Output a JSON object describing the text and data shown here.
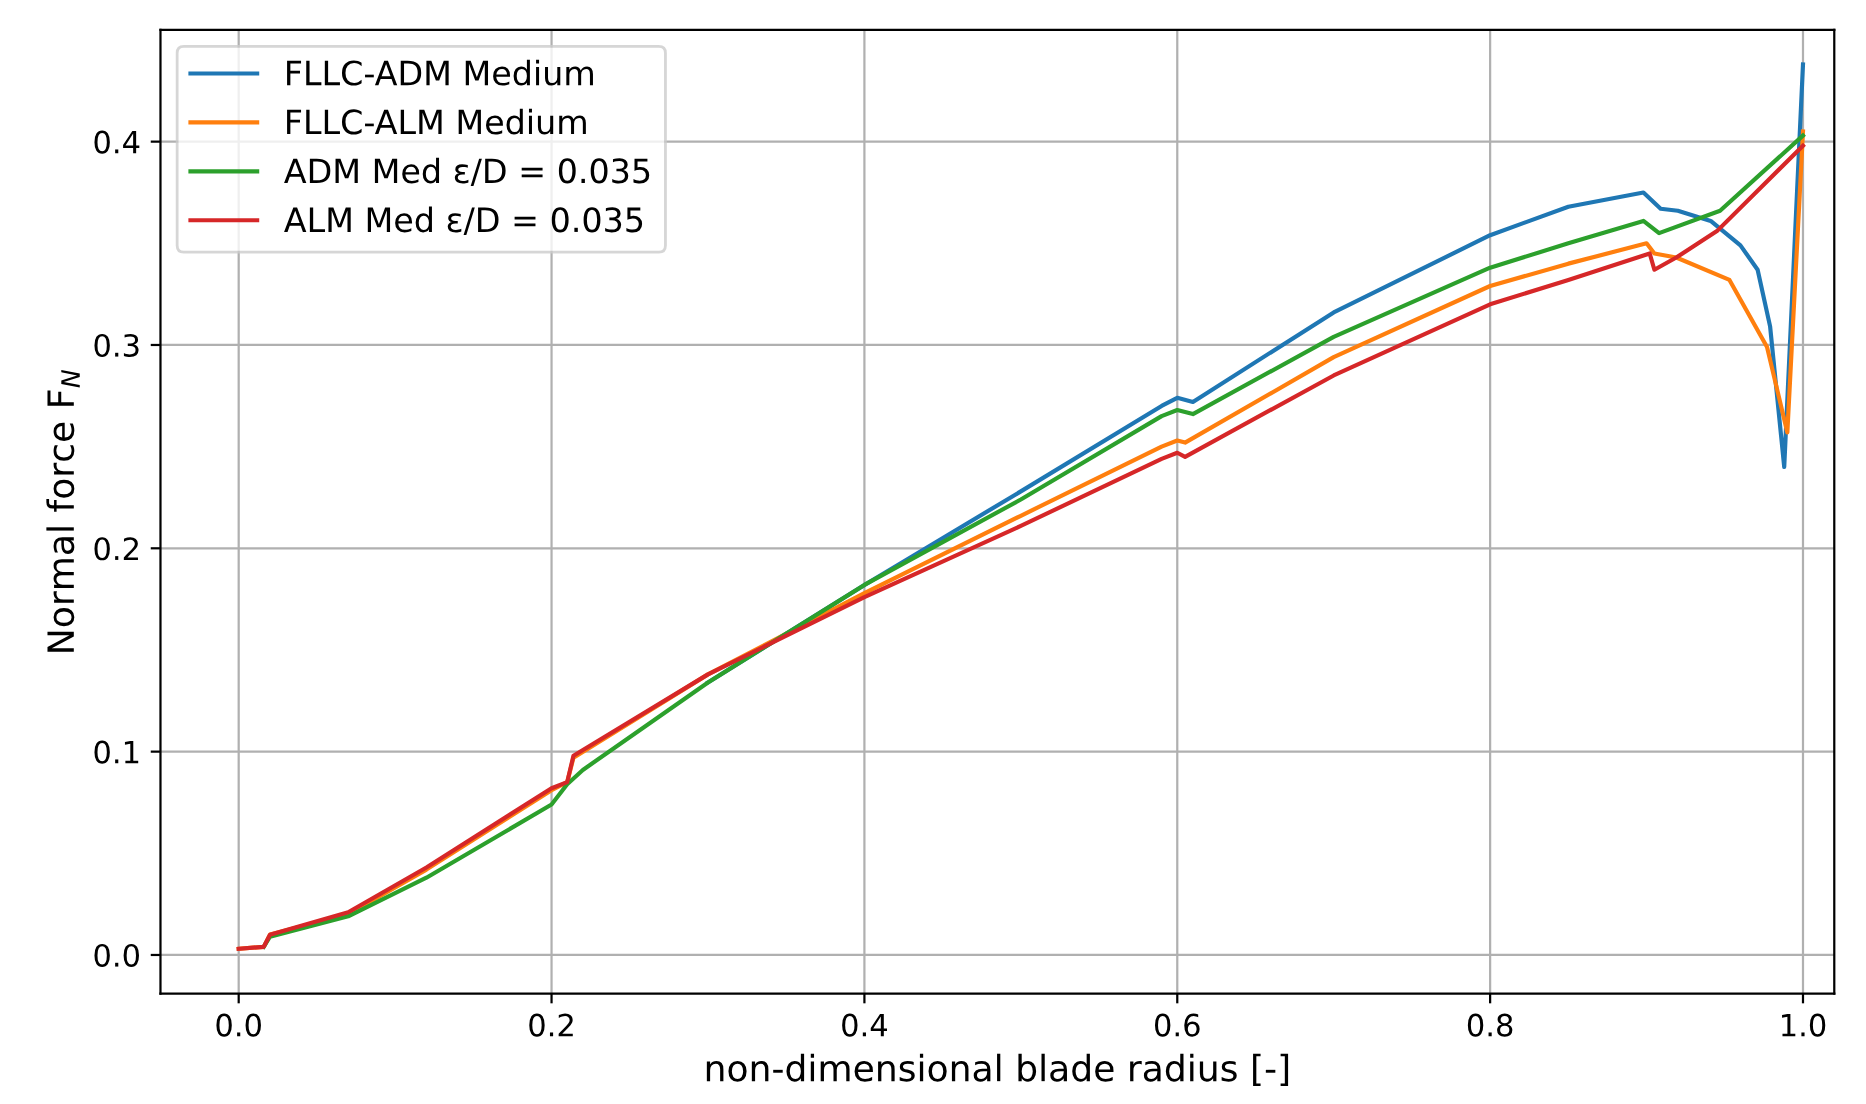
{
  "chart_data": {
    "type": "line",
    "xlabel": "non-dimensional blade radius [-]",
    "ylabel": "Normal force F$_{N}$",
    "xlim": [
      -0.05,
      1.02
    ],
    "ylim": [
      -0.019,
      0.455
    ],
    "xticks": [
      {
        "value": 0,
        "label": "0.0"
      },
      0.2,
      0.4,
      0.6,
      0.8,
      {
        "value": 1,
        "label": "1.0"
      }
    ],
    "yticks": [
      {
        "value": 0,
        "label": "0.0"
      },
      0.1,
      0.2,
      0.3,
      0.4
    ],
    "grid": true,
    "legend": "top left",
    "marker": "none",
    "line_style": "solid",
    "series": [
      {
        "name": "FLLC-ADM Medium",
        "color": "#1f77b4",
        "x": [
          0.3,
          0.4,
          0.5,
          0.59,
          0.6,
          0.61,
          0.7,
          0.8,
          0.85,
          0.898,
          0.909,
          0.92,
          0.941,
          0.96,
          0.971,
          0.979,
          0.988,
          1.0
        ],
        "values": [
          0.134,
          0.182,
          0.228,
          0.27,
          0.274,
          0.272,
          0.316,
          0.354,
          0.368,
          0.375,
          0.367,
          0.366,
          0.361,
          0.349,
          0.337,
          0.309,
          0.24,
          0.438
        ]
      },
      {
        "name": "FLLC-ALM Medium",
        "color": "#ff7f0e",
        "x": [
          0,
          0.016,
          0.02,
          0.07,
          0.12,
          0.2,
          0.21,
          0.214,
          0.3,
          0.4,
          0.5,
          0.59,
          0.6,
          0.605,
          0.7,
          0.8,
          0.85,
          0.9,
          0.905,
          0.919,
          0.953,
          0.977,
          0.99,
          1.0
        ],
        "values": [
          0.003,
          0.004,
          0.01,
          0.02,
          0.042,
          0.081,
          0.085,
          0.097,
          0.138,
          0.178,
          0.216,
          0.25,
          0.253,
          0.252,
          0.294,
          0.329,
          0.34,
          0.35,
          0.345,
          0.343,
          0.332,
          0.299,
          0.257,
          0.405
        ]
      },
      {
        "name": "ADM Med ε/D = 0.035",
        "color": "#2ca02c",
        "x": [
          0.016,
          0.02,
          0.07,
          0.12,
          0.2,
          0.21,
          0.22,
          0.3,
          0.4,
          0.5,
          0.59,
          0.6,
          0.61,
          0.7,
          0.8,
          0.85,
          0.898,
          0.908,
          0.947,
          1.0
        ],
        "values": [
          0.004,
          0.009,
          0.019,
          0.038,
          0.074,
          0.084,
          0.091,
          0.134,
          0.182,
          0.224,
          0.265,
          0.268,
          0.266,
          0.304,
          0.338,
          0.35,
          0.361,
          0.355,
          0.366,
          0.403
        ]
      },
      {
        "name": "ALM Med ε/D = 0.035",
        "color": "#d62728",
        "x": [
          0,
          0.016,
          0.02,
          0.07,
          0.12,
          0.2,
          0.21,
          0.214,
          0.3,
          0.4,
          0.5,
          0.59,
          0.6,
          0.605,
          0.7,
          0.8,
          0.85,
          0.902,
          0.905,
          0.919,
          0.945,
          1.0
        ],
        "values": [
          0.003,
          0.004,
          0.01,
          0.021,
          0.043,
          0.082,
          0.085,
          0.098,
          0.138,
          0.176,
          0.211,
          0.244,
          0.247,
          0.245,
          0.285,
          0.32,
          0.332,
          0.345,
          0.337,
          0.343,
          0.356,
          0.398
        ]
      }
    ]
  }
}
